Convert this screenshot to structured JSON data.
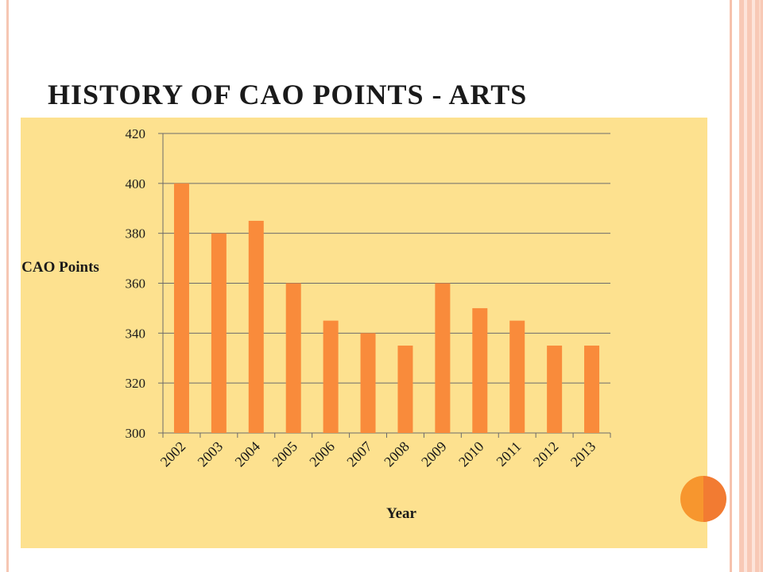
{
  "slide": {
    "title": "HISTORY OF CAO POINTS - ARTS"
  },
  "colors": {
    "bar": "#f98b3b",
    "plot_background": "#fde18f",
    "gridline": "#6b6b6b",
    "accent_circle": "#f7962e"
  },
  "chart_data": {
    "type": "bar",
    "title": "",
    "xlabel": "Year",
    "ylabel": "CAO Points",
    "categories": [
      "2002",
      "2003",
      "2004",
      "2005",
      "2006",
      "2007",
      "2008",
      "2009",
      "2010",
      "2011",
      "2012",
      "2013"
    ],
    "values": [
      400,
      380,
      385,
      360,
      345,
      340,
      335,
      360,
      350,
      345,
      335,
      335
    ],
    "ylim": [
      300,
      420
    ],
    "yticks": [
      300,
      320,
      340,
      360,
      380,
      400,
      420
    ],
    "grid": true,
    "legend": "none"
  }
}
